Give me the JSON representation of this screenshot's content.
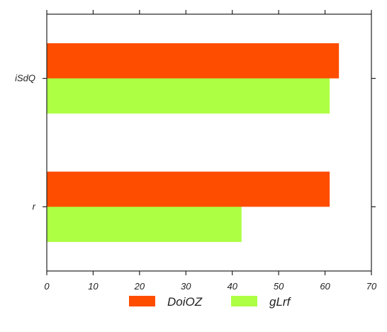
{
  "chart_data": {
    "type": "bar",
    "orientation": "horizontal",
    "categories": [
      "iSdQ",
      "r"
    ],
    "series": [
      {
        "name": "DoiOZ",
        "values": [
          63,
          61
        ],
        "color": "#ff4d00"
      },
      {
        "name": "gLrf",
        "values": [
          61,
          42
        ],
        "color": "#adff44"
      }
    ],
    "xlim": [
      0,
      70
    ],
    "xticks": [
      "0",
      "10",
      "20",
      "30",
      "40",
      "50",
      "60",
      "70"
    ],
    "grid": false,
    "legend_position": "bottom"
  }
}
